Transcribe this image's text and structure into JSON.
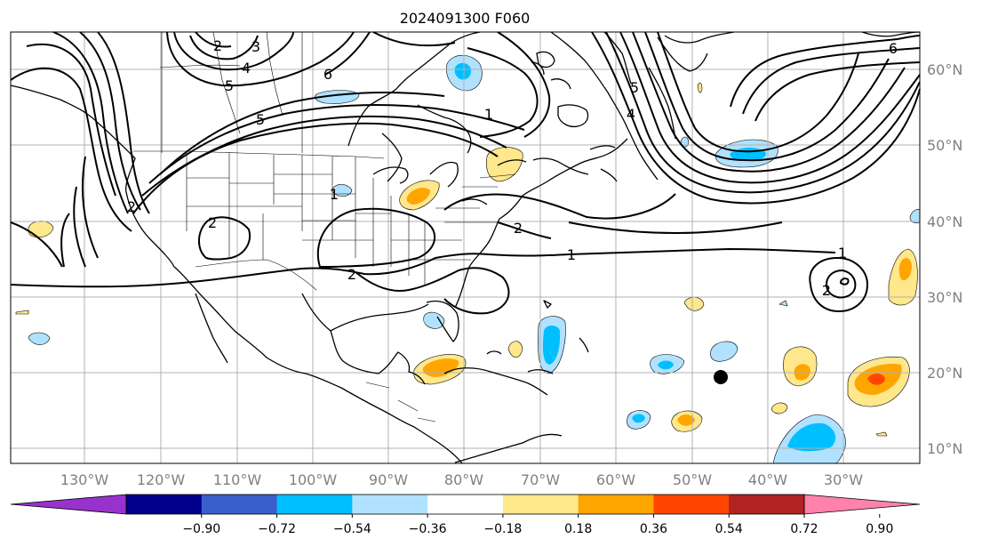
{
  "title": "2024091300 F060",
  "lon_labels": [
    "130°W",
    "120°W",
    "110°W",
    "100°W",
    "90°W",
    "80°W",
    "70°W",
    "60°W",
    "50°W",
    "40°W",
    "30°W"
  ],
  "lat_labels": [
    "60°N",
    "50°N",
    "40°N",
    "30°N",
    "20°N",
    "10°N"
  ],
  "colorbar": {
    "tick_labels": [
      "−0.90",
      "−0.72",
      "−0.54",
      "−0.36",
      "−0.18",
      "0.18",
      "0.36",
      "0.54",
      "0.72",
      "0.90"
    ],
    "colors": [
      "#9932cc",
      "#00008b",
      "#3a5fcd",
      "#00bfff",
      "#b0e2ff",
      "#ffffff",
      "#ffe78c",
      "#ffa500",
      "#ff4500",
      "#b22222",
      "#ff82ab"
    ]
  },
  "contour_labels": [
    "2",
    "3",
    "4",
    "5",
    "6",
    "5",
    "1",
    "5",
    "4",
    "6",
    "2",
    "1",
    "2",
    "1",
    "2",
    "1",
    "2",
    "2"
  ],
  "storm_marker": "black-dot",
  "colors": {
    "neg_light": "#b0e2ff",
    "neg_mid": "#00bfff",
    "pos_light": "#ffe78c",
    "pos_mid": "#ffa500",
    "pos_strong": "#ff4500",
    "grid": "#b0b0b0",
    "frame": "#000000"
  }
}
